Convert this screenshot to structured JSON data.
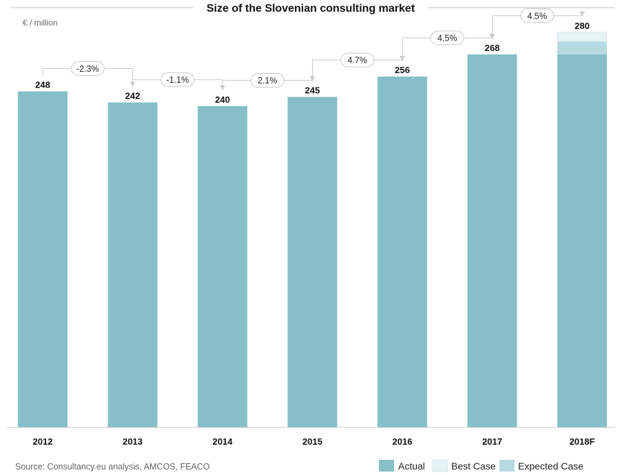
{
  "chart_data": {
    "type": "bar",
    "title": "Size of the Slovenian consulting market",
    "unit_label": "€ / million",
    "categories": [
      "2012",
      "2013",
      "2014",
      "2015",
      "2016",
      "2017",
      "2018F"
    ],
    "series": [
      {
        "name": "Actual",
        "values": [
          248,
          242,
          240,
          245,
          256,
          268,
          268
        ]
      },
      {
        "name": "Expected Case",
        "values": [
          0,
          0,
          0,
          0,
          0,
          0,
          7
        ]
      },
      {
        "name": "Best Case",
        "values": [
          0,
          0,
          0,
          0,
          0,
          0,
          5
        ]
      }
    ],
    "value_labels": [
      "248",
      "242",
      "240",
      "245",
      "256",
      "268",
      "280"
    ],
    "growth_labels": [
      "-2.3%",
      "-1.1%",
      "2.1%",
      "4.7%",
      "4.5%",
      "4.5%"
    ],
    "ylim": [
      66,
      290
    ],
    "grid": false,
    "legend_position": "bottom-right",
    "colors": {
      "Actual": "#86bfc8",
      "Expected Case": "#b5dae1",
      "Best Case": "#e6f3f5"
    },
    "source": "Source: Consultancy.eu analysis, AMCOS, FEACO"
  }
}
